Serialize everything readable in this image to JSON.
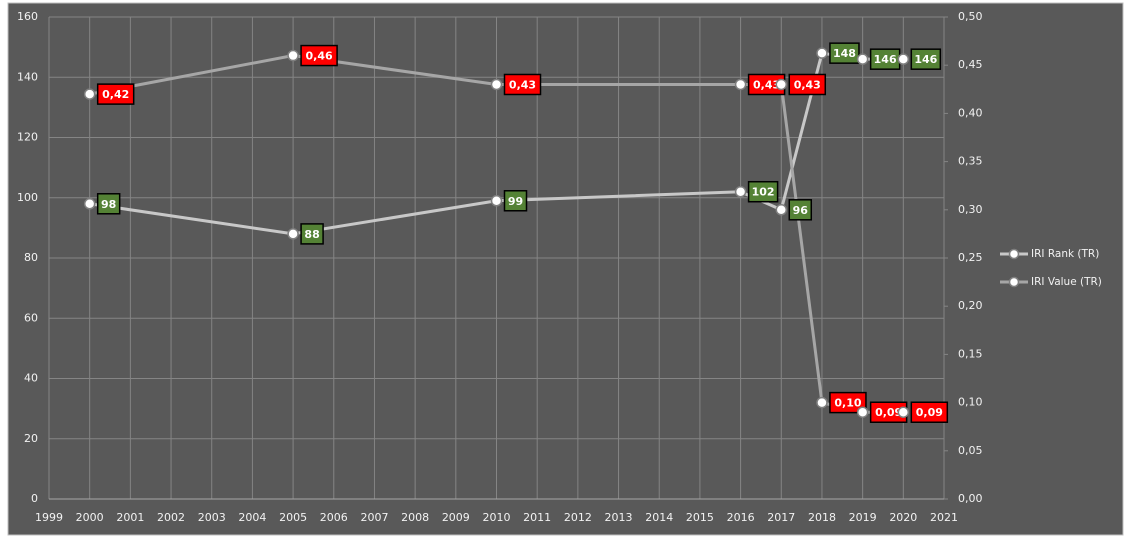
{
  "chart_data": {
    "type": "line",
    "x": [
      2000,
      2005,
      2010,
      2016,
      2017,
      2018,
      2019,
      2020
    ],
    "series": [
      {
        "name": "IRI Rank (TR)",
        "color": "#c8c8c8",
        "values": [
          98,
          88,
          99,
          102,
          96,
          148,
          146,
          146
        ],
        "label_color": "#548235"
      },
      {
        "name": "IRI Value (TR)",
        "color": "#a6a6a6",
        "axis": "y2",
        "values": [
          0.42,
          0.46,
          0.43,
          0.43,
          0.43,
          0.1,
          0.09,
          0.09
        ],
        "value_labels": [
          "0,42",
          "0,46",
          "0,43",
          "0,43",
          "0,43",
          "0,10",
          "0,09",
          "0,09"
        ],
        "label_color": "#ff0000"
      }
    ],
    "xlim": [
      1999,
      2021
    ],
    "xticks": [
      1999,
      2000,
      2001,
      2002,
      2003,
      2004,
      2005,
      2006,
      2007,
      2008,
      2009,
      2010,
      2011,
      2012,
      2013,
      2014,
      2015,
      2016,
      2017,
      2018,
      2019,
      2020,
      2021
    ],
    "ylim": [
      0,
      160
    ],
    "yticks": [
      0,
      20,
      40,
      60,
      80,
      100,
      120,
      140,
      160
    ],
    "y2lim": [
      0,
      0.5
    ],
    "y2ticks": [
      {
        "value": 0,
        "label": "0,00"
      },
      {
        "value": 0.05,
        "label": "0,05"
      },
      {
        "value": 0.1,
        "label": "0,10"
      },
      {
        "value": 0.15,
        "label": "0,15"
      },
      {
        "value": 0.2,
        "label": "0,20"
      },
      {
        "value": 0.25,
        "label": "0,25"
      },
      {
        "value": 0.3,
        "label": "0,30"
      },
      {
        "value": 0.35,
        "label": "0,35"
      },
      {
        "value": 0.4,
        "label": "0,40"
      },
      {
        "value": 0.45,
        "label": "0,45"
      },
      {
        "value": 0.5,
        "label": "0,50"
      }
    ],
    "grid": true,
    "legend": "right"
  }
}
